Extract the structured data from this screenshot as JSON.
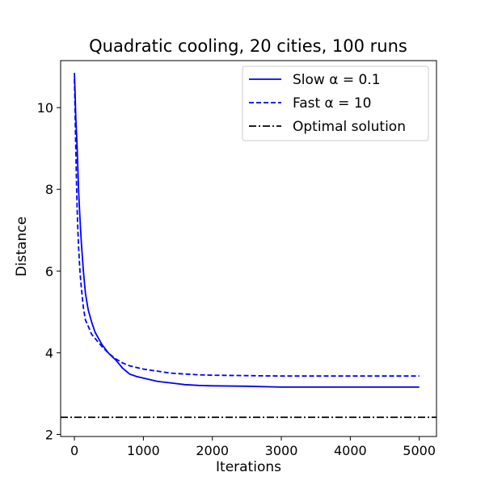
{
  "chart_data": {
    "type": "line",
    "title": "Quadratic cooling, 20 cities, 100 runs",
    "xlabel": "Iterations",
    "ylabel": "Distance",
    "xlim": [
      -200,
      5250
    ],
    "ylim": [
      1.95,
      11.15
    ],
    "xticks": [
      0,
      1000,
      2000,
      3000,
      4000,
      5000
    ],
    "yticks": [
      2,
      4,
      6,
      8,
      10
    ],
    "grid": false,
    "legend_position": "top-right",
    "series": [
      {
        "name": "Slow α = 0.1",
        "color": "#0000ff",
        "style": "solid",
        "x": [
          0,
          5,
          10,
          15,
          20,
          30,
          40,
          50,
          60,
          80,
          100,
          130,
          160,
          200,
          250,
          300,
          400,
          500,
          600,
          700,
          800,
          900,
          1000,
          1200,
          1400,
          1600,
          1800,
          2000,
          2500,
          3000,
          3500,
          4000,
          4500,
          5000
        ],
        "values": [
          10.85,
          10.6,
          10.35,
          10.05,
          9.75,
          9.4,
          9.0,
          8.5,
          8.0,
          7.3,
          6.7,
          6.0,
          5.45,
          5.05,
          4.75,
          4.5,
          4.2,
          3.98,
          3.82,
          3.62,
          3.48,
          3.42,
          3.38,
          3.3,
          3.26,
          3.22,
          3.2,
          3.19,
          3.18,
          3.16,
          3.16,
          3.16,
          3.16,
          3.16
        ]
      },
      {
        "name": "Fast α = 10",
        "color": "#0000ff",
        "style": "dashed",
        "x": [
          0,
          5,
          10,
          15,
          20,
          30,
          40,
          50,
          60,
          80,
          100,
          130,
          160,
          200,
          250,
          300,
          400,
          500,
          600,
          700,
          800,
          1000,
          1200,
          1400,
          1600,
          1800,
          2000,
          2500,
          3000,
          3500,
          4000,
          4500,
          5000
        ],
        "values": [
          10.7,
          10.3,
          9.9,
          9.4,
          9.0,
          8.2,
          7.5,
          7.0,
          6.6,
          6.0,
          5.6,
          5.1,
          4.8,
          4.65,
          4.45,
          4.35,
          4.15,
          3.98,
          3.85,
          3.75,
          3.68,
          3.6,
          3.55,
          3.5,
          3.48,
          3.46,
          3.45,
          3.44,
          3.43,
          3.43,
          3.43,
          3.43,
          3.43
        ]
      },
      {
        "name": "Optimal solution",
        "color": "#000000",
        "style": "dashdot",
        "constant": 2.42
      }
    ]
  }
}
